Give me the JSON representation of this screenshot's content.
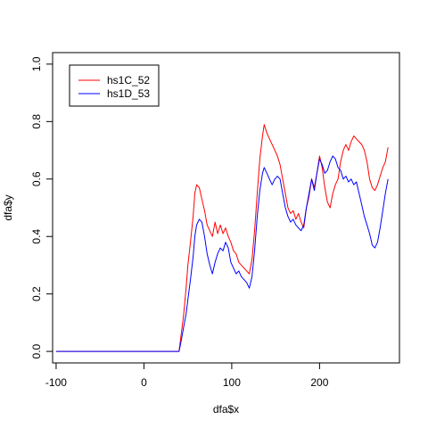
{
  "chart_data": {
    "type": "line",
    "title": "",
    "xlabel": "dfa$x",
    "ylabel": "dfa$y",
    "xlim": [
      -104,
      291
    ],
    "ylim": [
      -0.04,
      1.04
    ],
    "xticks": [
      -100,
      0,
      100,
      200
    ],
    "yticks": [
      0.0,
      0.2,
      0.4,
      0.6,
      0.8,
      1.0
    ],
    "xtick_labels": [
      "-100",
      "0",
      "100",
      "200"
    ],
    "ytick_labels": [
      "0.0",
      "0.2",
      "0.4",
      "0.6",
      "0.8",
      "1.0"
    ],
    "legend_position": "top-left",
    "grid": false,
    "series": [
      {
        "name": "hs1C_52",
        "color": "#ff0000",
        "x": [
          -100,
          40,
          42,
          45,
          48,
          50,
          53,
          56,
          58,
          60,
          63,
          66,
          69,
          72,
          75,
          78,
          81,
          84,
          87,
          90,
          93,
          96,
          99,
          102,
          105,
          108,
          111,
          114,
          117,
          120,
          123,
          126,
          129,
          132,
          135,
          137,
          140,
          143,
          146,
          149,
          152,
          155,
          158,
          161,
          164,
          167,
          170,
          173,
          176,
          179,
          182,
          185,
          188,
          191,
          194,
          197,
          200,
          203,
          206,
          209,
          212,
          215,
          218,
          221,
          224,
          227,
          230,
          233,
          236,
          239,
          242,
          245,
          248,
          251,
          254,
          257,
          260,
          263,
          266,
          269,
          272,
          275,
          278
        ],
        "y": [
          0.0,
          0.0,
          0.05,
          0.12,
          0.22,
          0.3,
          0.38,
          0.47,
          0.55,
          0.58,
          0.57,
          0.53,
          0.49,
          0.44,
          0.42,
          0.4,
          0.45,
          0.41,
          0.44,
          0.41,
          0.43,
          0.4,
          0.38,
          0.35,
          0.34,
          0.31,
          0.3,
          0.29,
          0.28,
          0.27,
          0.32,
          0.42,
          0.55,
          0.67,
          0.75,
          0.79,
          0.76,
          0.74,
          0.72,
          0.7,
          0.68,
          0.65,
          0.6,
          0.55,
          0.5,
          0.48,
          0.49,
          0.46,
          0.48,
          0.45,
          0.43,
          0.5,
          0.54,
          0.6,
          0.57,
          0.62,
          0.68,
          0.64,
          0.57,
          0.52,
          0.5,
          0.55,
          0.58,
          0.6,
          0.66,
          0.7,
          0.72,
          0.7,
          0.73,
          0.75,
          0.74,
          0.73,
          0.72,
          0.7,
          0.66,
          0.6,
          0.57,
          0.56,
          0.58,
          0.61,
          0.64,
          0.66,
          0.71
        ]
      },
      {
        "name": "hs1D_53",
        "color": "#0000ff",
        "x": [
          -100,
          40,
          42,
          45,
          48,
          50,
          53,
          56,
          58,
          60,
          63,
          66,
          69,
          72,
          75,
          78,
          81,
          84,
          87,
          90,
          93,
          96,
          99,
          102,
          105,
          108,
          111,
          114,
          117,
          120,
          123,
          126,
          129,
          132,
          135,
          137,
          140,
          143,
          146,
          149,
          152,
          155,
          158,
          161,
          164,
          167,
          170,
          173,
          176,
          179,
          182,
          185,
          188,
          191,
          194,
          197,
          200,
          203,
          206,
          209,
          212,
          215,
          218,
          221,
          224,
          227,
          230,
          233,
          236,
          239,
          242,
          245,
          248,
          251,
          254,
          257,
          260,
          263,
          266,
          269,
          272,
          275,
          278
        ],
        "y": [
          0.0,
          0.0,
          0.03,
          0.08,
          0.13,
          0.18,
          0.25,
          0.33,
          0.4,
          0.44,
          0.46,
          0.45,
          0.4,
          0.34,
          0.3,
          0.27,
          0.31,
          0.34,
          0.36,
          0.35,
          0.38,
          0.36,
          0.31,
          0.29,
          0.27,
          0.28,
          0.26,
          0.25,
          0.24,
          0.22,
          0.26,
          0.35,
          0.47,
          0.56,
          0.62,
          0.64,
          0.62,
          0.6,
          0.58,
          0.6,
          0.61,
          0.6,
          0.55,
          0.5,
          0.47,
          0.45,
          0.46,
          0.44,
          0.43,
          0.42,
          0.44,
          0.5,
          0.55,
          0.6,
          0.56,
          0.62,
          0.67,
          0.65,
          0.62,
          0.63,
          0.66,
          0.68,
          0.67,
          0.64,
          0.63,
          0.6,
          0.61,
          0.59,
          0.6,
          0.58,
          0.59,
          0.55,
          0.51,
          0.47,
          0.44,
          0.41,
          0.37,
          0.36,
          0.38,
          0.43,
          0.49,
          0.55,
          0.6
        ]
      }
    ]
  }
}
